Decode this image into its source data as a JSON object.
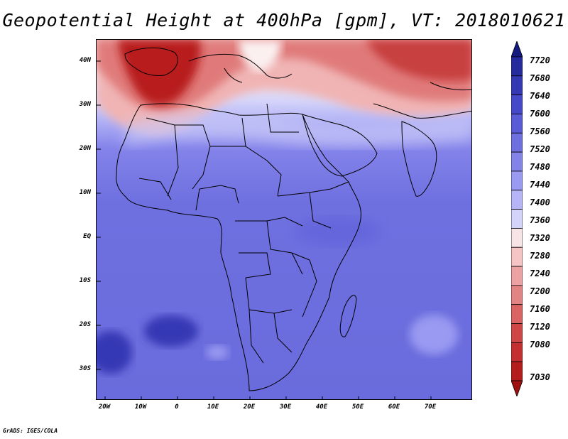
{
  "title": "Geopotential Height at 400hPa [gpm], VT: 2018010621",
  "credit": "GrADS: IGES/COLA",
  "map": {
    "lat_labels": [
      "40N",
      "30N",
      "20N",
      "10N",
      "EQ",
      "10S",
      "20S",
      "30S"
    ],
    "lon_labels": [
      "20W",
      "10W",
      "0",
      "10E",
      "20E",
      "30E",
      "40E",
      "50E",
      "60E",
      "70E"
    ]
  },
  "colorbar": {
    "labels": [
      "7720",
      "7680",
      "7640",
      "7600",
      "7560",
      "7520",
      "7480",
      "7440",
      "7400",
      "7360",
      "7320",
      "7280",
      "7240",
      "7200",
      "7160",
      "7120",
      "7080",
      "7030"
    ],
    "colors": [
      "#151a80",
      "#252a9c",
      "#3438b4",
      "#4548c8",
      "#5a5bd6",
      "#6f70e0",
      "#8483ea",
      "#9a9af2",
      "#b4b4f6",
      "#d4d4fa",
      "#f6e4e6",
      "#f6c4c4",
      "#eca2a2",
      "#e38484",
      "#da6464",
      "#cf4646",
      "#c42f2f",
      "#b51d1d",
      "#9e1010"
    ]
  }
}
